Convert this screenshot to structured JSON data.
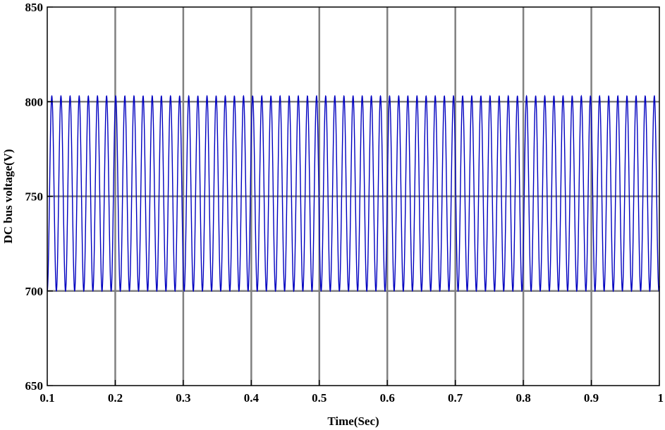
{
  "chart_data": {
    "type": "line",
    "title": "",
    "xlabel": "Time(Sec)",
    "ylabel": "DC bus voltage(V)",
    "xlim": [
      0.1,
      1.0
    ],
    "ylim": [
      650,
      850
    ],
    "xticks": [
      0.1,
      0.2,
      0.3,
      0.4,
      0.5,
      0.6,
      0.7,
      0.8,
      0.9,
      1.0
    ],
    "xtick_labels": [
      "0.1",
      "0.2",
      "0.3",
      "0.4",
      "0.5",
      "0.6",
      "0.7",
      "0.8",
      "0.9",
      "1"
    ],
    "yticks": [
      650,
      700,
      750,
      800,
      850
    ],
    "ytick_labels": [
      "650",
      "700",
      "750",
      "800",
      "850"
    ],
    "grid": true,
    "grid_color": "#808080",
    "background": "#ffffff",
    "series": [
      {
        "color": "#0000c0",
        "description_values": {
          "waveform": "sinusoidal ripple",
          "mean": 751.5,
          "max": 803,
          "min": 700,
          "frequency_hz": 74.5
        }
      }
    ]
  }
}
